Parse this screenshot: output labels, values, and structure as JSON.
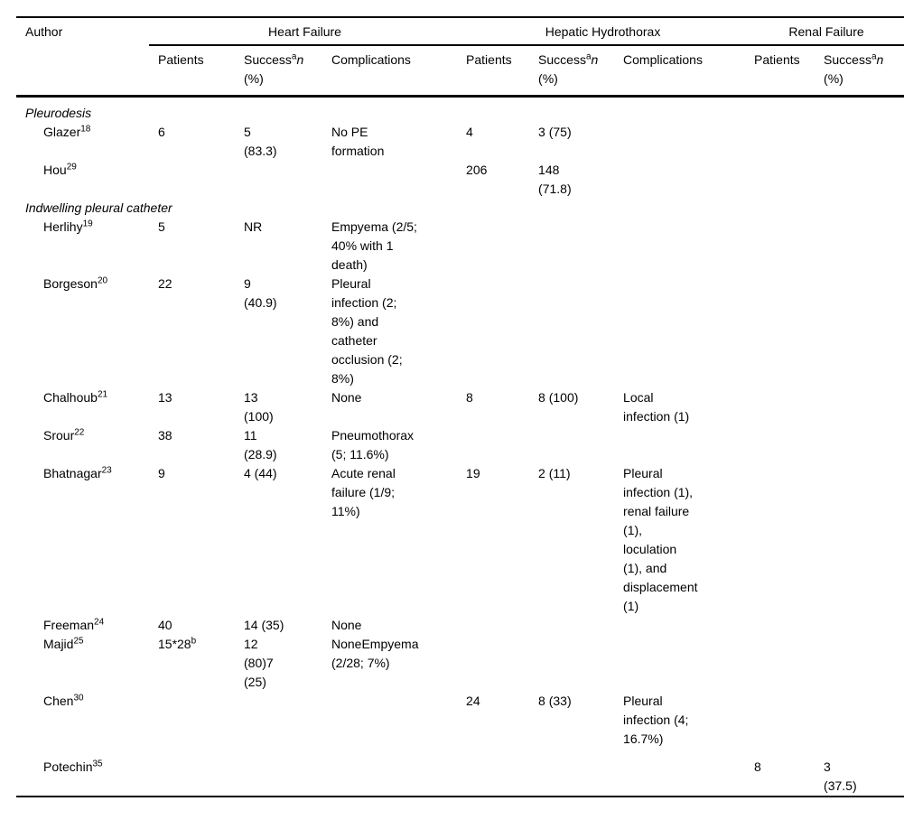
{
  "table": {
    "header": {
      "author": "Author",
      "groups": [
        {
          "label": "Heart Failure",
          "span": 3
        },
        {
          "label": "Hepatic Hydrothorax",
          "span": 3
        },
        {
          "label": "Renal Failure",
          "span": 2
        }
      ],
      "sub": {
        "patients": "Patients",
        "success": {
          "prefix": "Success",
          "sup": "a",
          "italic": "n",
          "line2": "(%)"
        },
        "complications": "Complications"
      }
    },
    "sections": [
      {
        "title": "Pleurodesis",
        "rows": [
          {
            "author": {
              "name": "Glazer",
              "sup": "18"
            },
            "hf": {
              "patients": "6",
              "success": "5\n(83.3)",
              "complications": "No PE\nformation"
            },
            "hh": {
              "patients": "4",
              "success": "3 (75)",
              "complications": ""
            },
            "rf": {
              "patients": "",
              "success": ""
            }
          },
          {
            "author": {
              "name": "Hou",
              "sup": "29"
            },
            "hf": {
              "patients": "",
              "success": "",
              "complications": ""
            },
            "hh": {
              "patients": "206",
              "success": "148\n(71.8)",
              "complications": ""
            },
            "rf": {
              "patients": "",
              "success": ""
            }
          }
        ]
      },
      {
        "title": "Indwelling pleural catheter",
        "rows": [
          {
            "author": {
              "name": "Herlihy",
              "sup": "19"
            },
            "hf": {
              "patients": "5",
              "success": "NR",
              "complications": "Empyema (2/5;\n40% with 1\ndeath)"
            },
            "hh": {
              "patients": "",
              "success": "",
              "complications": ""
            },
            "rf": {
              "patients": "",
              "success": ""
            }
          },
          {
            "author": {
              "name": "Borgeson",
              "sup": "20"
            },
            "hf": {
              "patients": "22",
              "success": "9\n(40.9)",
              "complications": "Pleural\ninfection (2;\n8%) and\ncatheter\nocclusion (2;\n8%)"
            },
            "hh": {
              "patients": "",
              "success": "",
              "complications": ""
            },
            "rf": {
              "patients": "",
              "success": ""
            }
          },
          {
            "author": {
              "name": "Chalhoub",
              "sup": "21"
            },
            "hf": {
              "patients": "13",
              "success": "13\n(100)",
              "complications": "None"
            },
            "hh": {
              "patients": "8",
              "success": "8 (100)",
              "complications": "Local\ninfection (1)"
            },
            "rf": {
              "patients": "",
              "success": ""
            }
          },
          {
            "author": {
              "name": "Srour",
              "sup": "22"
            },
            "hf": {
              "patients": "38",
              "success": "11\n(28.9)",
              "complications": "Pneumothorax\n(5; 11.6%)"
            },
            "hh": {
              "patients": "",
              "success": "",
              "complications": ""
            },
            "rf": {
              "patients": "",
              "success": ""
            }
          },
          {
            "author": {
              "name": "Bhatnagar",
              "sup": "23"
            },
            "hf": {
              "patients": "9",
              "success": "4 (44)",
              "complications": "Acute renal\nfailure (1/9;\n11%)"
            },
            "hh": {
              "patients": "19",
              "success": "2 (11)",
              "complications": "Pleural\ninfection (1),\nrenal failure\n(1),\nloculation\n(1), and\ndisplacement\n(1)"
            },
            "rf": {
              "patients": "",
              "success": ""
            }
          },
          {
            "author": {
              "name": "Freeman",
              "sup": "24"
            },
            "hf": {
              "patients": "40",
              "success": "14 (35)",
              "complications": "None"
            },
            "hh": {
              "patients": "",
              "success": "",
              "complications": ""
            },
            "rf": {
              "patients": "",
              "success": ""
            }
          },
          {
            "author": {
              "name": "Majid",
              "sup": "25"
            },
            "hf": {
              "patients": {
                "text": "15*28",
                "sup": "b"
              },
              "success": "12\n(80)7\n(25)",
              "complications": "NoneEmpyema\n(2/28; 7%)"
            },
            "hh": {
              "patients": "",
              "success": "",
              "complications": ""
            },
            "rf": {
              "patients": "",
              "success": ""
            }
          },
          {
            "author": {
              "name": "Chen",
              "sup": "30"
            },
            "hf": {
              "patients": "",
              "success": "",
              "complications": ""
            },
            "hh": {
              "patients": "24",
              "success": "8 (33)",
              "complications": "Pleural\ninfection (4;\n16.7%)"
            },
            "rf": {
              "patients": "",
              "success": ""
            }
          },
          {
            "author": {
              "name": "Potechin",
              "sup": "35"
            },
            "gap": true,
            "hf": {
              "patients": "",
              "success": "",
              "complications": ""
            },
            "hh": {
              "patients": "",
              "success": "",
              "complications": ""
            },
            "rf": {
              "patients": "8",
              "success": "3\n(37.5)"
            }
          }
        ]
      }
    ]
  }
}
